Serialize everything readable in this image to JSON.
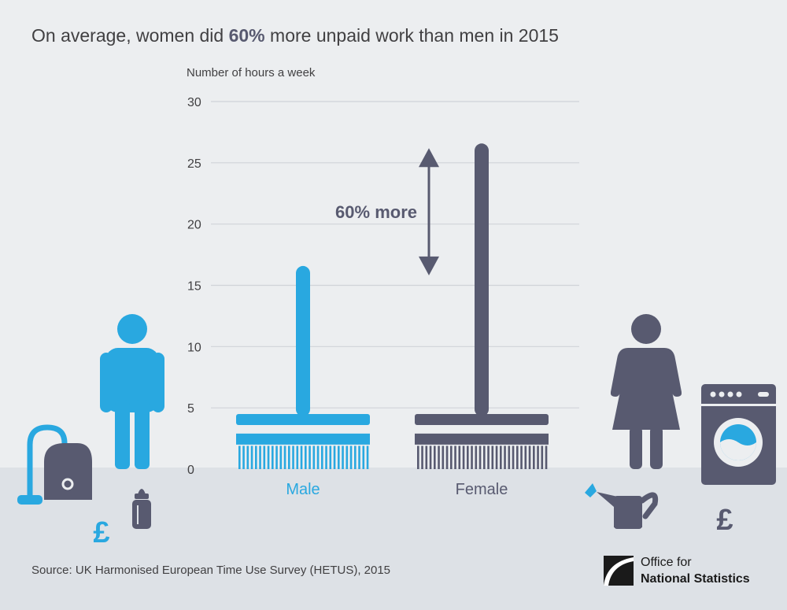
{
  "title": {
    "before": "On average, women did ",
    "emphasis": "60%",
    "after": " more unpaid work than men in 2015"
  },
  "colors": {
    "male": "#29a8e0",
    "female": "#585a70",
    "text": "#414042",
    "grid": "#d0d3d8",
    "background": "#eceef0",
    "floor": "#dde1e6"
  },
  "chart_data": {
    "type": "bar",
    "ylabel": "Number of hours a week",
    "ylim": [
      0,
      30
    ],
    "yticks": [
      "0",
      "5",
      "10",
      "15",
      "20",
      "25",
      "30"
    ],
    "grid": true,
    "categories": [
      "Male",
      "Female"
    ],
    "values": [
      16,
      26
    ],
    "annotation": "60% more",
    "bar_style": "broom-shaped bars"
  },
  "source": "Source: UK Harmonised European Time Use Survey (HETUS), 2015",
  "logo": {
    "line1": "Office for",
    "line2": "National Statistics"
  },
  "icons": [
    "vacuum-cleaner-icon",
    "man-icon",
    "baby-bottle-icon",
    "pound-icon",
    "woman-icon",
    "watering-can-icon",
    "washing-machine-icon",
    "pound-icon"
  ]
}
